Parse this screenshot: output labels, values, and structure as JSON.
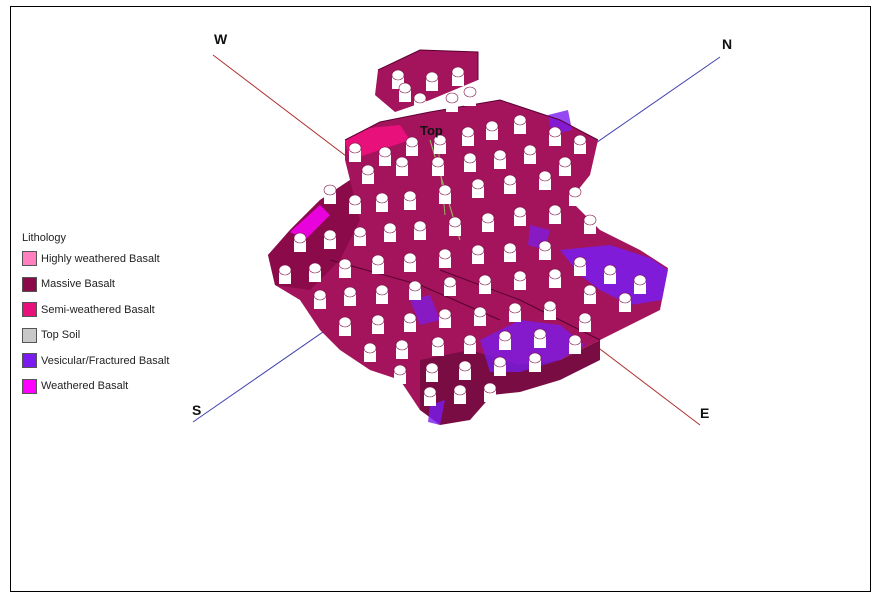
{
  "compass": {
    "w": "W",
    "n": "N",
    "s": "S",
    "e": "E"
  },
  "model": {
    "top_label": "Top"
  },
  "legend": {
    "title": "Lithology",
    "items": [
      {
        "label": "Highly weathered Basalt",
        "color": "#ff7fbf"
      },
      {
        "label": "Massive Basalt",
        "color": "#8b0a4a"
      },
      {
        "label": "Semi-weathered Basalt",
        "color": "#e8107a"
      },
      {
        "label": "Top Soil",
        "color": "#c8c8c8"
      },
      {
        "label": "Vesicular/Fractured Basalt",
        "color": "#7a1cf0"
      },
      {
        "label": "Weathered Basalt",
        "color": "#ff00ff"
      }
    ]
  },
  "colors": {
    "ns_axis": "#4040b0",
    "we_axis": "#b03030",
    "body": "#a3145c",
    "body_dark": "#7a0c44",
    "vesicular": "#7a1cf0"
  }
}
